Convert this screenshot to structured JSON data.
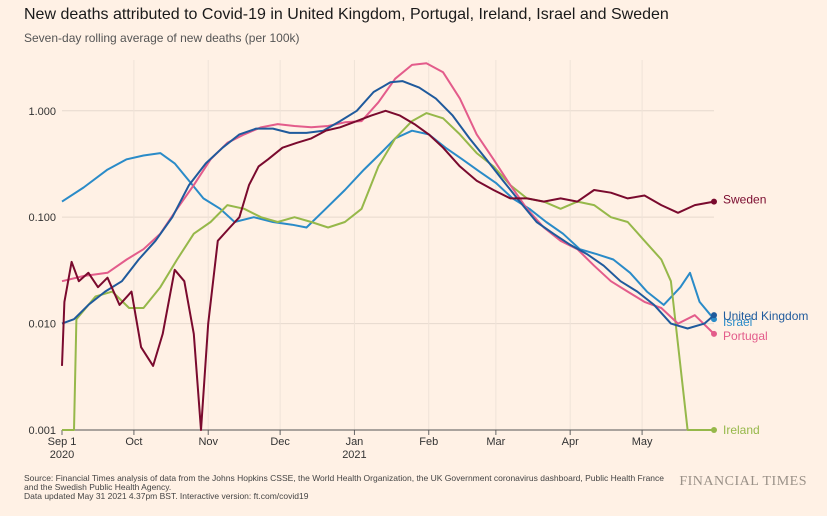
{
  "header": {
    "title": "New deaths attributed to Covid-19 in United Kingdom, Portugal, Ireland, Israel and Sweden",
    "subtitle": "Seven-day rolling average of new deaths (per 100k)"
  },
  "footer": {
    "source": "Source: Financial Times analysis of data from the Johns Hopkins CSSE, the World Health Organization, the UK Government coronavirus dashboard, Public Health France and the Swedish Public Health Agency.",
    "updated": "Data updated May 31 2021 4.37pm BST. Interactive version: ft.com/covid19",
    "brand": "FINANCIAL TIMES"
  },
  "chart_data": {
    "type": "line",
    "title": "New deaths attributed to Covid-19 in United Kingdom, Portugal, Ireland, Israel and Sweden",
    "subtitle": "Seven-day rolling average of new deaths (per 100k)",
    "yscale": "log",
    "ylim": [
      0.001,
      3
    ],
    "xlim": [
      "2020-09-01",
      "2021-05-31"
    ],
    "yticks": [
      {
        "value": 0.001,
        "label": "0.001"
      },
      {
        "value": 0.01,
        "label": "0.010"
      },
      {
        "value": 0.1,
        "label": "0.100"
      },
      {
        "value": 1,
        "label": "1.000"
      }
    ],
    "xticks": [
      {
        "date": "2020-09-01",
        "label": "Sep 1",
        "sublabel": "2020"
      },
      {
        "date": "2020-10-01",
        "label": "Oct",
        "sublabel": ""
      },
      {
        "date": "2020-11-01",
        "label": "Nov",
        "sublabel": ""
      },
      {
        "date": "2020-12-01",
        "label": "Dec",
        "sublabel": ""
      },
      {
        "date": "2021-01-01",
        "label": "Jan",
        "sublabel": "2021"
      },
      {
        "date": "2021-02-01",
        "label": "Feb",
        "sublabel": ""
      },
      {
        "date": "2021-03-01",
        "label": "Mar",
        "sublabel": ""
      },
      {
        "date": "2021-04-01",
        "label": "Apr",
        "sublabel": ""
      },
      {
        "date": "2021-05-01",
        "label": "May",
        "sublabel": ""
      }
    ],
    "grid": true,
    "legend": "direct labels at line ends",
    "series": [
      {
        "name": "Israel",
        "color": "#2a8bc8",
        "points": [
          [
            "2020-09-01",
            0.14
          ],
          [
            "2020-09-10",
            0.19
          ],
          [
            "2020-09-20",
            0.28
          ],
          [
            "2020-09-28",
            0.35
          ],
          [
            "2020-10-05",
            0.38
          ],
          [
            "2020-10-12",
            0.4
          ],
          [
            "2020-10-18",
            0.32
          ],
          [
            "2020-10-24",
            0.22
          ],
          [
            "2020-10-30",
            0.15
          ],
          [
            "2020-11-06",
            0.12
          ],
          [
            "2020-11-12",
            0.09
          ],
          [
            "2020-11-20",
            0.1
          ],
          [
            "2020-11-28",
            0.09
          ],
          [
            "2020-12-06",
            0.085
          ],
          [
            "2020-12-12",
            0.08
          ],
          [
            "2020-12-20",
            0.12
          ],
          [
            "2020-12-28",
            0.18
          ],
          [
            "2021-01-05",
            0.28
          ],
          [
            "2021-01-12",
            0.4
          ],
          [
            "2021-01-18",
            0.55
          ],
          [
            "2021-01-25",
            0.65
          ],
          [
            "2021-02-01",
            0.6
          ],
          [
            "2021-02-08",
            0.45
          ],
          [
            "2021-02-15",
            0.35
          ],
          [
            "2021-02-22",
            0.27
          ],
          [
            "2021-03-01",
            0.21
          ],
          [
            "2021-03-08",
            0.15
          ],
          [
            "2021-03-15",
            0.12
          ],
          [
            "2021-03-22",
            0.09
          ],
          [
            "2021-03-29",
            0.07
          ],
          [
            "2021-04-05",
            0.05
          ],
          [
            "2021-04-12",
            0.045
          ],
          [
            "2021-04-19",
            0.04
          ],
          [
            "2021-04-26",
            0.03
          ],
          [
            "2021-05-03",
            0.02
          ],
          [
            "2021-05-10",
            0.015
          ],
          [
            "2021-05-17",
            0.022
          ],
          [
            "2021-05-21",
            0.03
          ],
          [
            "2021-05-25",
            0.016
          ],
          [
            "2021-05-31",
            0.011
          ]
        ]
      },
      {
        "name": "Ireland",
        "color": "#96b84a",
        "points": [
          [
            "2020-09-01",
            0.001
          ],
          [
            "2020-09-06",
            0.001
          ],
          [
            "2020-09-07",
            0.011
          ],
          [
            "2020-09-15",
            0.018
          ],
          [
            "2020-09-22",
            0.02
          ],
          [
            "2020-09-29",
            0.014
          ],
          [
            "2020-10-05",
            0.014
          ],
          [
            "2020-10-12",
            0.022
          ],
          [
            "2020-10-19",
            0.04
          ],
          [
            "2020-10-26",
            0.07
          ],
          [
            "2020-11-02",
            0.09
          ],
          [
            "2020-11-09",
            0.13
          ],
          [
            "2020-11-16",
            0.12
          ],
          [
            "2020-11-23",
            0.1
          ],
          [
            "2020-11-30",
            0.09
          ],
          [
            "2020-12-07",
            0.1
          ],
          [
            "2020-12-14",
            0.09
          ],
          [
            "2020-12-21",
            0.08
          ],
          [
            "2020-12-28",
            0.09
          ],
          [
            "2021-01-04",
            0.12
          ],
          [
            "2021-01-11",
            0.3
          ],
          [
            "2021-01-18",
            0.55
          ],
          [
            "2021-01-25",
            0.8
          ],
          [
            "2021-01-31",
            0.95
          ],
          [
            "2021-02-07",
            0.85
          ],
          [
            "2021-02-14",
            0.6
          ],
          [
            "2021-02-21",
            0.4
          ],
          [
            "2021-02-28",
            0.3
          ],
          [
            "2021-03-07",
            0.2
          ],
          [
            "2021-03-14",
            0.15
          ],
          [
            "2021-03-21",
            0.14
          ],
          [
            "2021-03-28",
            0.12
          ],
          [
            "2021-04-04",
            0.14
          ],
          [
            "2021-04-11",
            0.13
          ],
          [
            "2021-04-18",
            0.1
          ],
          [
            "2021-04-25",
            0.09
          ],
          [
            "2021-05-02",
            0.06
          ],
          [
            "2021-05-09",
            0.04
          ],
          [
            "2021-05-13",
            0.025
          ],
          [
            "2021-05-20",
            0.001
          ],
          [
            "2021-05-31",
            0.001
          ]
        ]
      },
      {
        "name": "Portugal",
        "color": "#e35c8b",
        "points": [
          [
            "2020-09-01",
            0.025
          ],
          [
            "2020-09-10",
            0.028
          ],
          [
            "2020-09-20",
            0.03
          ],
          [
            "2020-09-28",
            0.04
          ],
          [
            "2020-10-05",
            0.05
          ],
          [
            "2020-10-12",
            0.07
          ],
          [
            "2020-10-19",
            0.12
          ],
          [
            "2020-10-26",
            0.2
          ],
          [
            "2020-11-02",
            0.35
          ],
          [
            "2020-11-09",
            0.5
          ],
          [
            "2020-11-16",
            0.6
          ],
          [
            "2020-11-23",
            0.7
          ],
          [
            "2020-11-30",
            0.75
          ],
          [
            "2020-12-07",
            0.72
          ],
          [
            "2020-12-14",
            0.7
          ],
          [
            "2020-12-21",
            0.72
          ],
          [
            "2020-12-28",
            0.78
          ],
          [
            "2021-01-04",
            0.8
          ],
          [
            "2021-01-11",
            1.2
          ],
          [
            "2021-01-18",
            2.0
          ],
          [
            "2021-01-25",
            2.7
          ],
          [
            "2021-01-31",
            2.8
          ],
          [
            "2021-02-07",
            2.3
          ],
          [
            "2021-02-14",
            1.3
          ],
          [
            "2021-02-21",
            0.6
          ],
          [
            "2021-02-28",
            0.35
          ],
          [
            "2021-03-07",
            0.2
          ],
          [
            "2021-03-14",
            0.12
          ],
          [
            "2021-03-21",
            0.08
          ],
          [
            "2021-03-28",
            0.06
          ],
          [
            "2021-04-04",
            0.05
          ],
          [
            "2021-04-11",
            0.035
          ],
          [
            "2021-04-18",
            0.025
          ],
          [
            "2021-04-25",
            0.02
          ],
          [
            "2021-05-02",
            0.016
          ],
          [
            "2021-05-09",
            0.014
          ],
          [
            "2021-05-16",
            0.01
          ],
          [
            "2021-05-23",
            0.012
          ],
          [
            "2021-05-31",
            0.008
          ]
        ]
      },
      {
        "name": "United Kingdom",
        "color": "#1f5a9c",
        "points": [
          [
            "2020-09-01",
            0.01
          ],
          [
            "2020-09-06",
            0.011
          ],
          [
            "2020-09-12",
            0.015
          ],
          [
            "2020-09-19",
            0.02
          ],
          [
            "2020-09-26",
            0.025
          ],
          [
            "2020-10-03",
            0.04
          ],
          [
            "2020-10-10",
            0.06
          ],
          [
            "2020-10-17",
            0.1
          ],
          [
            "2020-10-24",
            0.2
          ],
          [
            "2020-10-31",
            0.32
          ],
          [
            "2020-11-07",
            0.45
          ],
          [
            "2020-11-14",
            0.6
          ],
          [
            "2020-11-21",
            0.68
          ],
          [
            "2020-11-28",
            0.68
          ],
          [
            "2020-12-05",
            0.62
          ],
          [
            "2020-12-12",
            0.62
          ],
          [
            "2020-12-19",
            0.65
          ],
          [
            "2020-12-26",
            0.8
          ],
          [
            "2021-01-02",
            1.0
          ],
          [
            "2021-01-09",
            1.5
          ],
          [
            "2021-01-16",
            1.85
          ],
          [
            "2021-01-21",
            1.9
          ],
          [
            "2021-01-28",
            1.65
          ],
          [
            "2021-02-04",
            1.3
          ],
          [
            "2021-02-11",
            0.9
          ],
          [
            "2021-02-18",
            0.55
          ],
          [
            "2021-02-25",
            0.35
          ],
          [
            "2021-03-04",
            0.22
          ],
          [
            "2021-03-11",
            0.14
          ],
          [
            "2021-03-18",
            0.09
          ],
          [
            "2021-03-25",
            0.07
          ],
          [
            "2021-04-01",
            0.055
          ],
          [
            "2021-04-08",
            0.045
          ],
          [
            "2021-04-15",
            0.035
          ],
          [
            "2021-04-22",
            0.025
          ],
          [
            "2021-04-29",
            0.02
          ],
          [
            "2021-05-06",
            0.015
          ],
          [
            "2021-05-13",
            0.01
          ],
          [
            "2021-05-20",
            0.009
          ],
          [
            "2021-05-27",
            0.01
          ],
          [
            "2021-05-31",
            0.012
          ]
        ]
      },
      {
        "name": "Sweden",
        "color": "#7a0a2e",
        "points": [
          [
            "2020-09-01",
            0.004
          ],
          [
            "2020-09-02",
            0.016
          ],
          [
            "2020-09-05",
            0.038
          ],
          [
            "2020-09-08",
            0.025
          ],
          [
            "2020-09-12",
            0.03
          ],
          [
            "2020-09-16",
            0.022
          ],
          [
            "2020-09-20",
            0.027
          ],
          [
            "2020-09-25",
            0.015
          ],
          [
            "2020-09-30",
            0.02
          ],
          [
            "2020-10-04",
            0.006
          ],
          [
            "2020-10-09",
            0.004
          ],
          [
            "2020-10-13",
            0.008
          ],
          [
            "2020-10-18",
            0.032
          ],
          [
            "2020-10-22",
            0.025
          ],
          [
            "2020-10-26",
            0.008
          ],
          [
            "2020-10-29",
            0.001
          ],
          [
            "2020-11-01",
            0.01
          ],
          [
            "2020-11-05",
            0.06
          ],
          [
            "2020-11-10",
            0.08
          ],
          [
            "2020-11-14",
            0.1
          ],
          [
            "2020-11-18",
            0.2
          ],
          [
            "2020-11-22",
            0.3
          ],
          [
            "2020-11-26",
            0.35
          ],
          [
            "2020-12-02",
            0.45
          ],
          [
            "2020-12-08",
            0.5
          ],
          [
            "2020-12-14",
            0.55
          ],
          [
            "2020-12-20",
            0.65
          ],
          [
            "2020-12-26",
            0.7
          ],
          [
            "2021-01-02",
            0.8
          ],
          [
            "2021-01-08",
            0.9
          ],
          [
            "2021-01-14",
            1.0
          ],
          [
            "2021-01-20",
            0.9
          ],
          [
            "2021-01-26",
            0.75
          ],
          [
            "2021-02-01",
            0.6
          ],
          [
            "2021-02-07",
            0.45
          ],
          [
            "2021-02-14",
            0.3
          ],
          [
            "2021-02-21",
            0.22
          ],
          [
            "2021-02-28",
            0.18
          ],
          [
            "2021-03-07",
            0.15
          ],
          [
            "2021-03-14",
            0.15
          ],
          [
            "2021-03-21",
            0.14
          ],
          [
            "2021-03-28",
            0.15
          ],
          [
            "2021-04-04",
            0.14
          ],
          [
            "2021-04-11",
            0.18
          ],
          [
            "2021-04-18",
            0.17
          ],
          [
            "2021-04-25",
            0.15
          ],
          [
            "2021-05-02",
            0.16
          ],
          [
            "2021-05-09",
            0.13
          ],
          [
            "2021-05-16",
            0.11
          ],
          [
            "2021-05-23",
            0.13
          ],
          [
            "2021-05-31",
            0.14
          ]
        ]
      }
    ]
  }
}
